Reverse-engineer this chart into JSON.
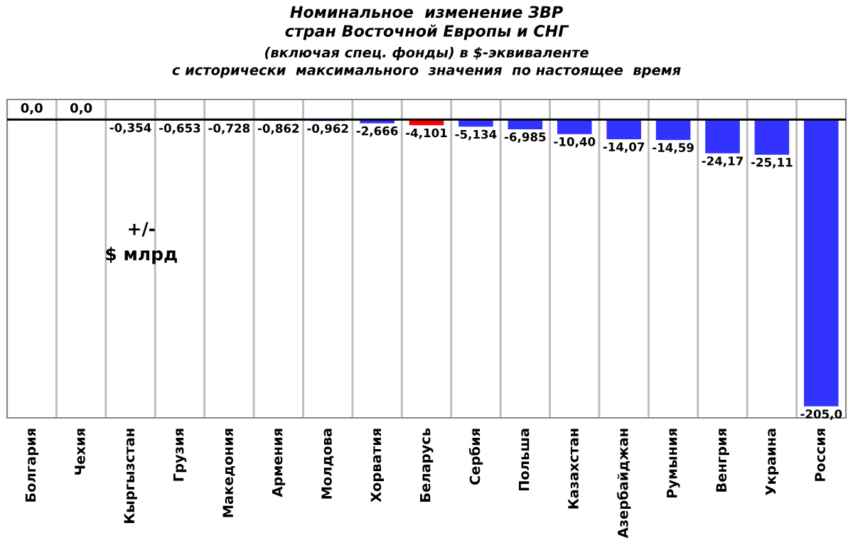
{
  "chart_data": {
    "type": "bar",
    "title": "Номинальное  изменение ЗВР\nстран Восточной Европы и СНГ",
    "subtitle": "(включая спец. фонды) в $-эквиваленте\nс исторически  максимального  значения  по настоящее  время",
    "ylabel": "+/-\n$ млрд",
    "categories": [
      "Болгария",
      "Чехия",
      "Кыргызстан",
      "Грузия",
      "Македония",
      "Армения",
      "Молдова",
      "Хорватия",
      "Беларусь",
      "Сербия",
      "Польша",
      "Казахстан",
      "Азербайджан",
      "Румыния",
      "Венгрия",
      "Украина",
      "Россия"
    ],
    "values": [
      0.0,
      0.0,
      -0.354,
      -0.653,
      -0.728,
      -0.862,
      -0.962,
      -2.666,
      -4.101,
      -5.134,
      -6.985,
      -10.4,
      -14.07,
      -14.59,
      -24.17,
      -25.11,
      -205.0
    ],
    "colors": [
      "#3333ff",
      "#3333ff",
      "#3333ff",
      "#3333ff",
      "#3333ff",
      "#3333ff",
      "#3333ff",
      "#3333ff",
      "#ff0000",
      "#3333ff",
      "#3333ff",
      "#3333ff",
      "#3333ff",
      "#3333ff",
      "#3333ff",
      "#3333ff",
      "#3333ff"
    ],
    "value_labels": [
      "0,0",
      "0,0",
      "-0,354",
      "-0,653",
      "-0,728",
      "-0,862",
      "-0,962",
      "-2,666",
      "-4,101",
      "-5,134",
      "-6,985",
      "-10,40",
      "-14,07",
      "-14,59",
      "-24,17",
      "-25,11",
      "-205,0"
    ],
    "grid": "x",
    "legend": false,
    "tick_labels": "x"
  }
}
